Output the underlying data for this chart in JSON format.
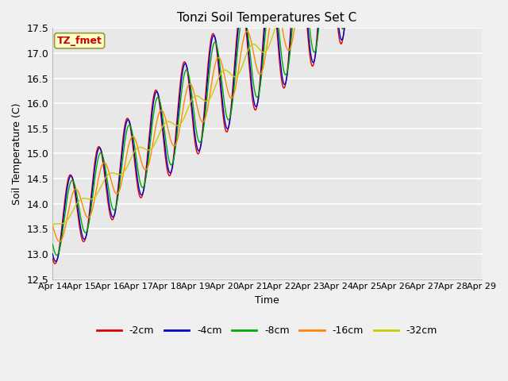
{
  "title": "Tonzi Soil Temperatures Set C",
  "xlabel": "Time",
  "ylabel": "Soil Temperature (C)",
  "ylim": [
    12.5,
    17.5
  ],
  "yticks": [
    12.5,
    13.0,
    13.5,
    14.0,
    14.5,
    15.0,
    15.5,
    16.0,
    16.5,
    17.0,
    17.5
  ],
  "fig_bg_color": "#f0f0f0",
  "plot_bg_color": "#e8e8e8",
  "line_colors": {
    "-2cm": "#dd0000",
    "-4cm": "#0000cc",
    "-8cm": "#00aa00",
    "-16cm": "#ff8800",
    "-32cm": "#cccc00"
  },
  "tz_fmet_box_color": "#ffffcc",
  "tz_fmet_text_color": "#cc0000",
  "xtick_labels": [
    "Apr 14",
    "Apr 15",
    "Apr 16",
    "Apr 17",
    "Apr 18",
    "Apr 19",
    "Apr 20",
    "Apr 21",
    "Apr 22",
    "Apr 23",
    "Apr 24",
    "Apr 25",
    "Apr 26",
    "Apr 27",
    "Apr 28",
    "Apr 29"
  ]
}
